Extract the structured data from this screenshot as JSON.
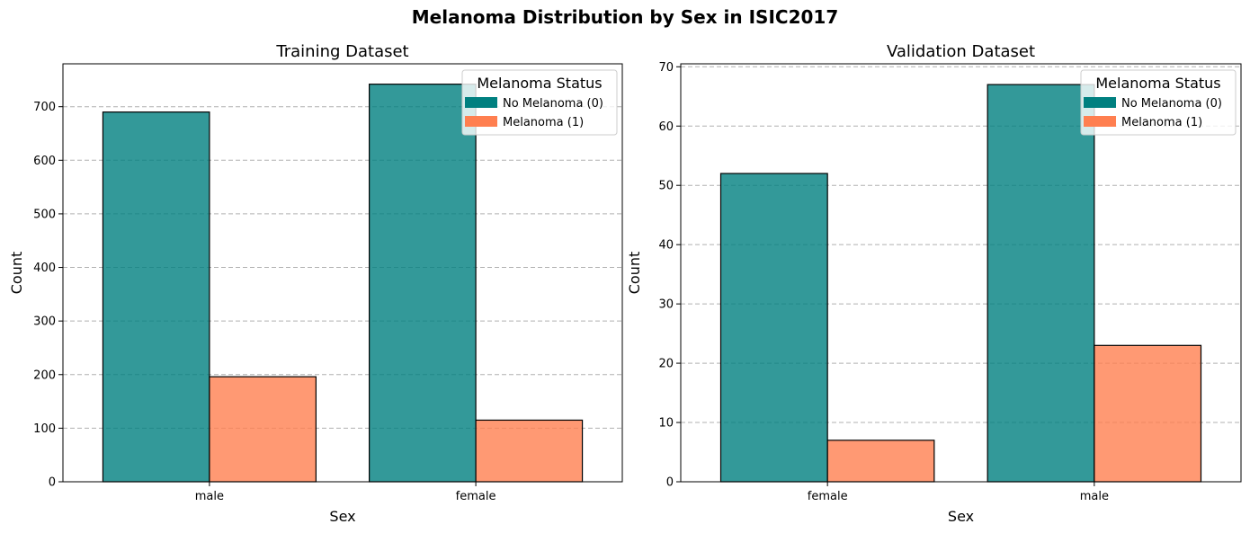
{
  "figure_title": "Melanoma Distribution by Sex in ISIC2017",
  "legend_title": "Melanoma Status",
  "series_colors": [
    "#008080",
    "#FF7F50"
  ],
  "chart_data": [
    {
      "type": "bar",
      "title": "Training Dataset",
      "xlabel": "Sex",
      "ylabel": "Count",
      "categories": [
        "male",
        "female"
      ],
      "series": [
        {
          "name": "No Melanoma (0)",
          "values": [
            690,
            742
          ]
        },
        {
          "name": "Melanoma (1)",
          "values": [
            196,
            115
          ]
        }
      ],
      "ylim": [
        0,
        780
      ],
      "yticks": [
        0,
        100,
        200,
        300,
        400,
        500,
        600,
        700
      ],
      "grid": "y",
      "legend": "top-right"
    },
    {
      "type": "bar",
      "title": "Validation Dataset",
      "xlabel": "Sex",
      "ylabel": "Count",
      "categories": [
        "female",
        "male"
      ],
      "series": [
        {
          "name": "No Melanoma (0)",
          "values": [
            52,
            67
          ]
        },
        {
          "name": "Melanoma (1)",
          "values": [
            7,
            23
          ]
        }
      ],
      "ylim": [
        0,
        70.5
      ],
      "yticks": [
        0,
        10,
        20,
        30,
        40,
        50,
        60,
        70
      ],
      "grid": "y",
      "legend": "top-right"
    }
  ]
}
